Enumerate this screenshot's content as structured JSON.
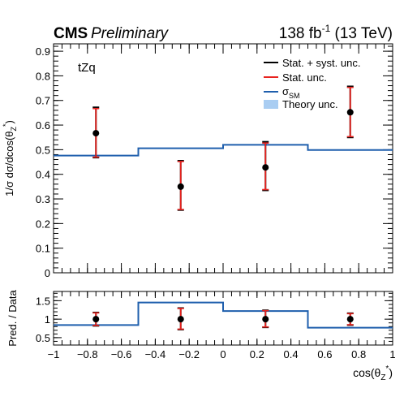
{
  "header": {
    "experiment": "CMS",
    "status": "Preliminary",
    "lumi_value": "138 fb",
    "lumi_exp": "-1",
    "lumi_energy": " (13 TeV)"
  },
  "process_label": "tZq",
  "legend": {
    "placement": "top-right",
    "entries": [
      {
        "label": "Stat. + syst. unc.",
        "color": "#000000",
        "kind": "line"
      },
      {
        "label": "Stat. unc.",
        "color": "#e8231f",
        "kind": "line"
      },
      {
        "label_main": "σ",
        "label_sub": "SM",
        "color": "#1f5fad",
        "kind": "line"
      },
      {
        "label": "Theory unc.",
        "color": "#a9cdf2",
        "kind": "box"
      }
    ]
  },
  "axes": {
    "ylabel_main": "1/σ dσ/dcos(θ",
    "ylabel_sub": "Z",
    "ylabel_sup": "*",
    "ylabel_close": ")",
    "ratio_ylabel": "Pred. / Data",
    "xlabel_main": "cos(θ",
    "xlabel_sub": "Z",
    "xlabel_sup": "*",
    "xlabel_close": ")"
  },
  "chart_data": [
    {
      "type": "scatter",
      "panel": "main",
      "x_edges": [
        -1,
        -0.5,
        0,
        0.5,
        1
      ],
      "x": [
        -0.75,
        -0.25,
        0.25,
        0.75
      ],
      "xlim": [
        -1,
        1
      ],
      "ylim": [
        0,
        0.93
      ],
      "xticks": [
        "−1",
        "−0.8",
        "−0.6",
        "−0.4",
        "−0.2",
        "0",
        "0.2",
        "0.4",
        "0.6",
        "0.8",
        "1"
      ],
      "yticks": [
        "0",
        "0.1",
        "0.2",
        "0.3",
        "0.4",
        "0.5",
        "0.6",
        "0.7",
        "0.8",
        "0.9"
      ],
      "series": [
        {
          "name": "Data",
          "values": [
            0.567,
            0.35,
            0.428,
            0.652
          ],
          "total_unc": [
            [
              0.468,
              0.672
            ],
            [
              0.255,
              0.455
            ],
            [
              0.335,
              0.532
            ],
            [
              0.55,
              0.757
            ]
          ],
          "stat_unc": [
            [
              0.47,
              0.667
            ],
            [
              0.257,
              0.452
            ],
            [
              0.338,
              0.527
            ],
            [
              0.553,
              0.753
            ]
          ]
        },
        {
          "name": "σSM",
          "values": [
            0.476,
            0.506,
            0.52,
            0.499
          ]
        }
      ]
    },
    {
      "type": "scatter",
      "panel": "ratio",
      "x_edges": [
        -1,
        -0.5,
        0,
        0.5,
        1
      ],
      "x": [
        -0.75,
        -0.25,
        0.25,
        0.75
      ],
      "xlim": [
        -1,
        1
      ],
      "ylim": [
        0.3,
        1.75
      ],
      "yticks": [
        "0.5",
        "1",
        "1.5"
      ],
      "series": [
        {
          "name": "Data",
          "values": [
            1.0,
            1.0,
            1.0,
            1.0
          ],
          "total_unc": [
            [
              0.82,
              1.18
            ],
            [
              0.72,
              1.3
            ],
            [
              0.78,
              1.24
            ],
            [
              0.84,
              1.16
            ]
          ],
          "stat_unc": [
            [
              0.83,
              1.17
            ],
            [
              0.73,
              1.29
            ],
            [
              0.79,
              1.23
            ],
            [
              0.85,
              1.15
            ]
          ]
        },
        {
          "name": "Prediction",
          "values": [
            0.84,
            1.45,
            1.22,
            0.77
          ]
        }
      ]
    }
  ]
}
